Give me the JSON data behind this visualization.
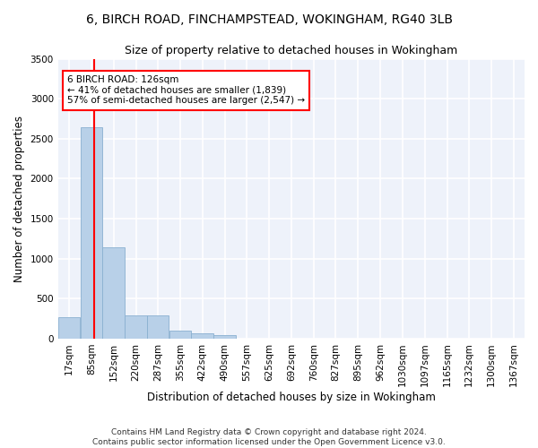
{
  "title_line1": "6, BIRCH ROAD, FINCHAMPSTEAD, WOKINGHAM, RG40 3LB",
  "title_line2": "Size of property relative to detached houses in Wokingham",
  "xlabel": "Distribution of detached houses by size in Wokingham",
  "ylabel": "Number of detached properties",
  "bar_color": "#b8d0e8",
  "bar_edge_color": "#8ab0d0",
  "background_color": "#eef2fa",
  "grid_color": "#ffffff",
  "annotation_text": "6 BIRCH ROAD: 126sqm\n← 41% of detached houses are smaller (1,839)\n57% of semi-detached houses are larger (2,547) →",
  "red_line_x": 126,
  "categories": [
    "17sqm",
    "85sqm",
    "152sqm",
    "220sqm",
    "287sqm",
    "355sqm",
    "422sqm",
    "490sqm",
    "557sqm",
    "625sqm",
    "692sqm",
    "760sqm",
    "827sqm",
    "895sqm",
    "962sqm",
    "1030sqm",
    "1097sqm",
    "1165sqm",
    "1232sqm",
    "1300sqm",
    "1367sqm"
  ],
  "bin_edges": [
    17,
    85,
    152,
    220,
    287,
    355,
    422,
    490,
    557,
    625,
    692,
    760,
    827,
    895,
    962,
    1030,
    1097,
    1165,
    1232,
    1300,
    1367
  ],
  "bin_width": 67,
  "bar_heights": [
    270,
    2640,
    1140,
    285,
    285,
    95,
    60,
    40,
    0,
    0,
    0,
    0,
    0,
    0,
    0,
    0,
    0,
    0,
    0,
    0
  ],
  "ylim": [
    0,
    3500
  ],
  "yticks": [
    0,
    500,
    1000,
    1500,
    2000,
    2500,
    3000,
    3500
  ],
  "xlim_left": 17,
  "xlim_right": 1434,
  "footnote": "Contains HM Land Registry data © Crown copyright and database right 2024.\nContains public sector information licensed under the Open Government Licence v3.0.",
  "title_fontsize": 10,
  "subtitle_fontsize": 9,
  "axis_label_fontsize": 8.5,
  "tick_fontsize": 7.5,
  "annotation_fontsize": 7.5,
  "footnote_fontsize": 6.5
}
